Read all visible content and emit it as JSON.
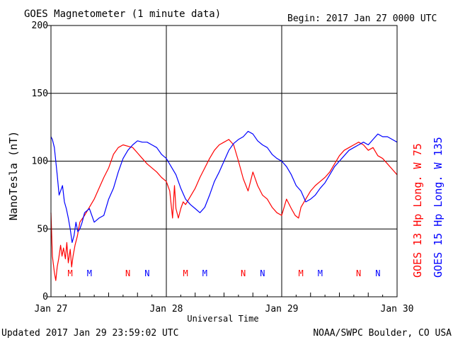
{
  "header": {
    "title": "GOES Magnetometer (1 minute data)",
    "begin": "Begin:  2017 Jan 27 0000 UTC"
  },
  "footer": {
    "updated": "Updated 2017 Jan 29 23:59:02 UTC",
    "credit": "NOAA/SWPC Boulder, CO USA"
  },
  "colors": {
    "goes13": "#ff0000",
    "goes15": "#0000ff"
  },
  "chart_data": {
    "type": "line",
    "xlabel": "Universal Time",
    "ylabel": "NanoTesla (nT)",
    "xlim": [
      0,
      72
    ],
    "ylim": [
      0,
      200
    ],
    "x_unit": "hours since 2017 Jan 27 0000 UTC",
    "y_ticks": [
      0,
      50,
      100,
      150,
      200
    ],
    "x_ticks": [
      {
        "x": 0,
        "label": "Jan 27"
      },
      {
        "x": 24,
        "label": "Jan 28"
      },
      {
        "x": 48,
        "label": "Jan 29"
      },
      {
        "x": 72,
        "label": "Jan 30"
      }
    ],
    "grid": true,
    "legend": [
      "GOES 13 Hp  Long. W 75",
      "GOES 15 Hp  Long. W 135"
    ],
    "series": [
      {
        "name": "GOES 13 Hp  Long. W 75",
        "color": "#ff0000",
        "x": [
          0,
          0.3,
          0.7,
          1.0,
          1.3,
          1.6,
          2.0,
          2.3,
          2.6,
          3.0,
          3.3,
          3.6,
          4.0,
          4.3,
          4.6,
          5.0,
          5.5,
          6.0,
          7.0,
          8.0,
          9.0,
          10.0,
          11.0,
          12.0,
          13.0,
          14.0,
          15.0,
          16.0,
          17.0,
          18.0,
          19.0,
          20.0,
          21.0,
          22.0,
          23.0,
          24.0,
          24.7,
          25.3,
          25.7,
          26.0,
          26.5,
          27.0,
          27.5,
          28.0,
          29.0,
          30.0,
          31.0,
          32.0,
          33.0,
          34.0,
          35.0,
          36.0,
          37.0,
          38.0,
          39.0,
          40.0,
          41.0,
          42.0,
          43.0,
          44.0,
          45.0,
          46.0,
          47.0,
          48.0,
          49.0,
          50.0,
          50.8,
          51.5,
          52.0,
          53.0,
          54.0,
          55.0,
          56.0,
          57.0,
          58.0,
          59.0,
          60.0,
          61.0,
          62.0,
          63.0,
          64.0,
          65.0,
          66.0,
          67.0,
          68.0,
          69.0,
          70.0,
          71.0,
          72.0
        ],
        "y": [
          62,
          30,
          18,
          12,
          22,
          28,
          38,
          30,
          36,
          28,
          40,
          25,
          35,
          22,
          30,
          38,
          45,
          55,
          60,
          66,
          72,
          80,
          88,
          95,
          105,
          110,
          112,
          111,
          110,
          106,
          102,
          98,
          95,
          92,
          88,
          85,
          78,
          58,
          82,
          65,
          58,
          65,
          70,
          68,
          74,
          80,
          88,
          95,
          102,
          108,
          112,
          114,
          116,
          112,
          100,
          87,
          78,
          92,
          82,
          75,
          72,
          66,
          62,
          60,
          72,
          65,
          60,
          58,
          66,
          72,
          78,
          82,
          85,
          88,
          92,
          98,
          104,
          108,
          110,
          112,
          114,
          112,
          108,
          110,
          104,
          102,
          98,
          94,
          90
        ]
      },
      {
        "name": "GOES 15 Hp  Long. W 135",
        "color": "#0000ff",
        "x": [
          0,
          0.3,
          0.7,
          1.0,
          1.3,
          1.7,
          2.0,
          2.4,
          2.8,
          3.2,
          3.6,
          4.0,
          4.4,
          4.8,
          5.2,
          5.6,
          6.0,
          6.5,
          7.0,
          8.0,
          9.0,
          10.0,
          11.0,
          12.0,
          13.0,
          14.0,
          15.0,
          16.0,
          17.0,
          18.0,
          19.0,
          20.0,
          21.0,
          22.0,
          23.0,
          24.0,
          25.0,
          26.0,
          27.0,
          28.0,
          29.0,
          30.0,
          31.0,
          32.0,
          33.0,
          34.0,
          35.0,
          36.0,
          37.0,
          38.0,
          39.0,
          40.0,
          41.0,
          42.0,
          43.0,
          44.0,
          45.0,
          46.0,
          47.0,
          48.0,
          49.0,
          50.0,
          51.0,
          52.0,
          53.0,
          54.0,
          55.0,
          56.0,
          57.0,
          58.0,
          59.0,
          60.0,
          61.0,
          62.0,
          63.0,
          64.0,
          65.0,
          66.0,
          67.0,
          68.0,
          69.0,
          70.0,
          71.0,
          72.0
        ],
        "y": [
          118,
          116,
          110,
          100,
          90,
          75,
          78,
          82,
          70,
          65,
          58,
          50,
          40,
          45,
          55,
          48,
          50,
          55,
          62,
          65,
          55,
          58,
          60,
          72,
          80,
          92,
          102,
          108,
          112,
          115,
          114,
          114,
          112,
          110,
          105,
          102,
          96,
          90,
          80,
          72,
          68,
          65,
          62,
          66,
          75,
          85,
          92,
          100,
          108,
          113,
          116,
          118,
          122,
          120,
          115,
          112,
          110,
          105,
          102,
          100,
          96,
          90,
          82,
          78,
          70,
          72,
          75,
          80,
          84,
          90,
          96,
          100,
          104,
          108,
          110,
          112,
          114,
          112,
          116,
          120,
          118,
          118,
          116,
          114
        ]
      }
    ],
    "markers": [
      {
        "x": 4.0,
        "label": "M",
        "color": "#ff0000"
      },
      {
        "x": 8.0,
        "label": "M",
        "color": "#0000ff"
      },
      {
        "x": 16.0,
        "label": "N",
        "color": "#ff0000"
      },
      {
        "x": 20.0,
        "label": "N",
        "color": "#0000ff"
      },
      {
        "x": 28.0,
        "label": "M",
        "color": "#ff0000"
      },
      {
        "x": 32.0,
        "label": "M",
        "color": "#0000ff"
      },
      {
        "x": 40.0,
        "label": "N",
        "color": "#ff0000"
      },
      {
        "x": 44.0,
        "label": "N",
        "color": "#0000ff"
      },
      {
        "x": 52.0,
        "label": "M",
        "color": "#ff0000"
      },
      {
        "x": 56.0,
        "label": "M",
        "color": "#0000ff"
      },
      {
        "x": 64.0,
        "label": "N",
        "color": "#ff0000"
      },
      {
        "x": 68.0,
        "label": "N",
        "color": "#0000ff"
      }
    ]
  }
}
